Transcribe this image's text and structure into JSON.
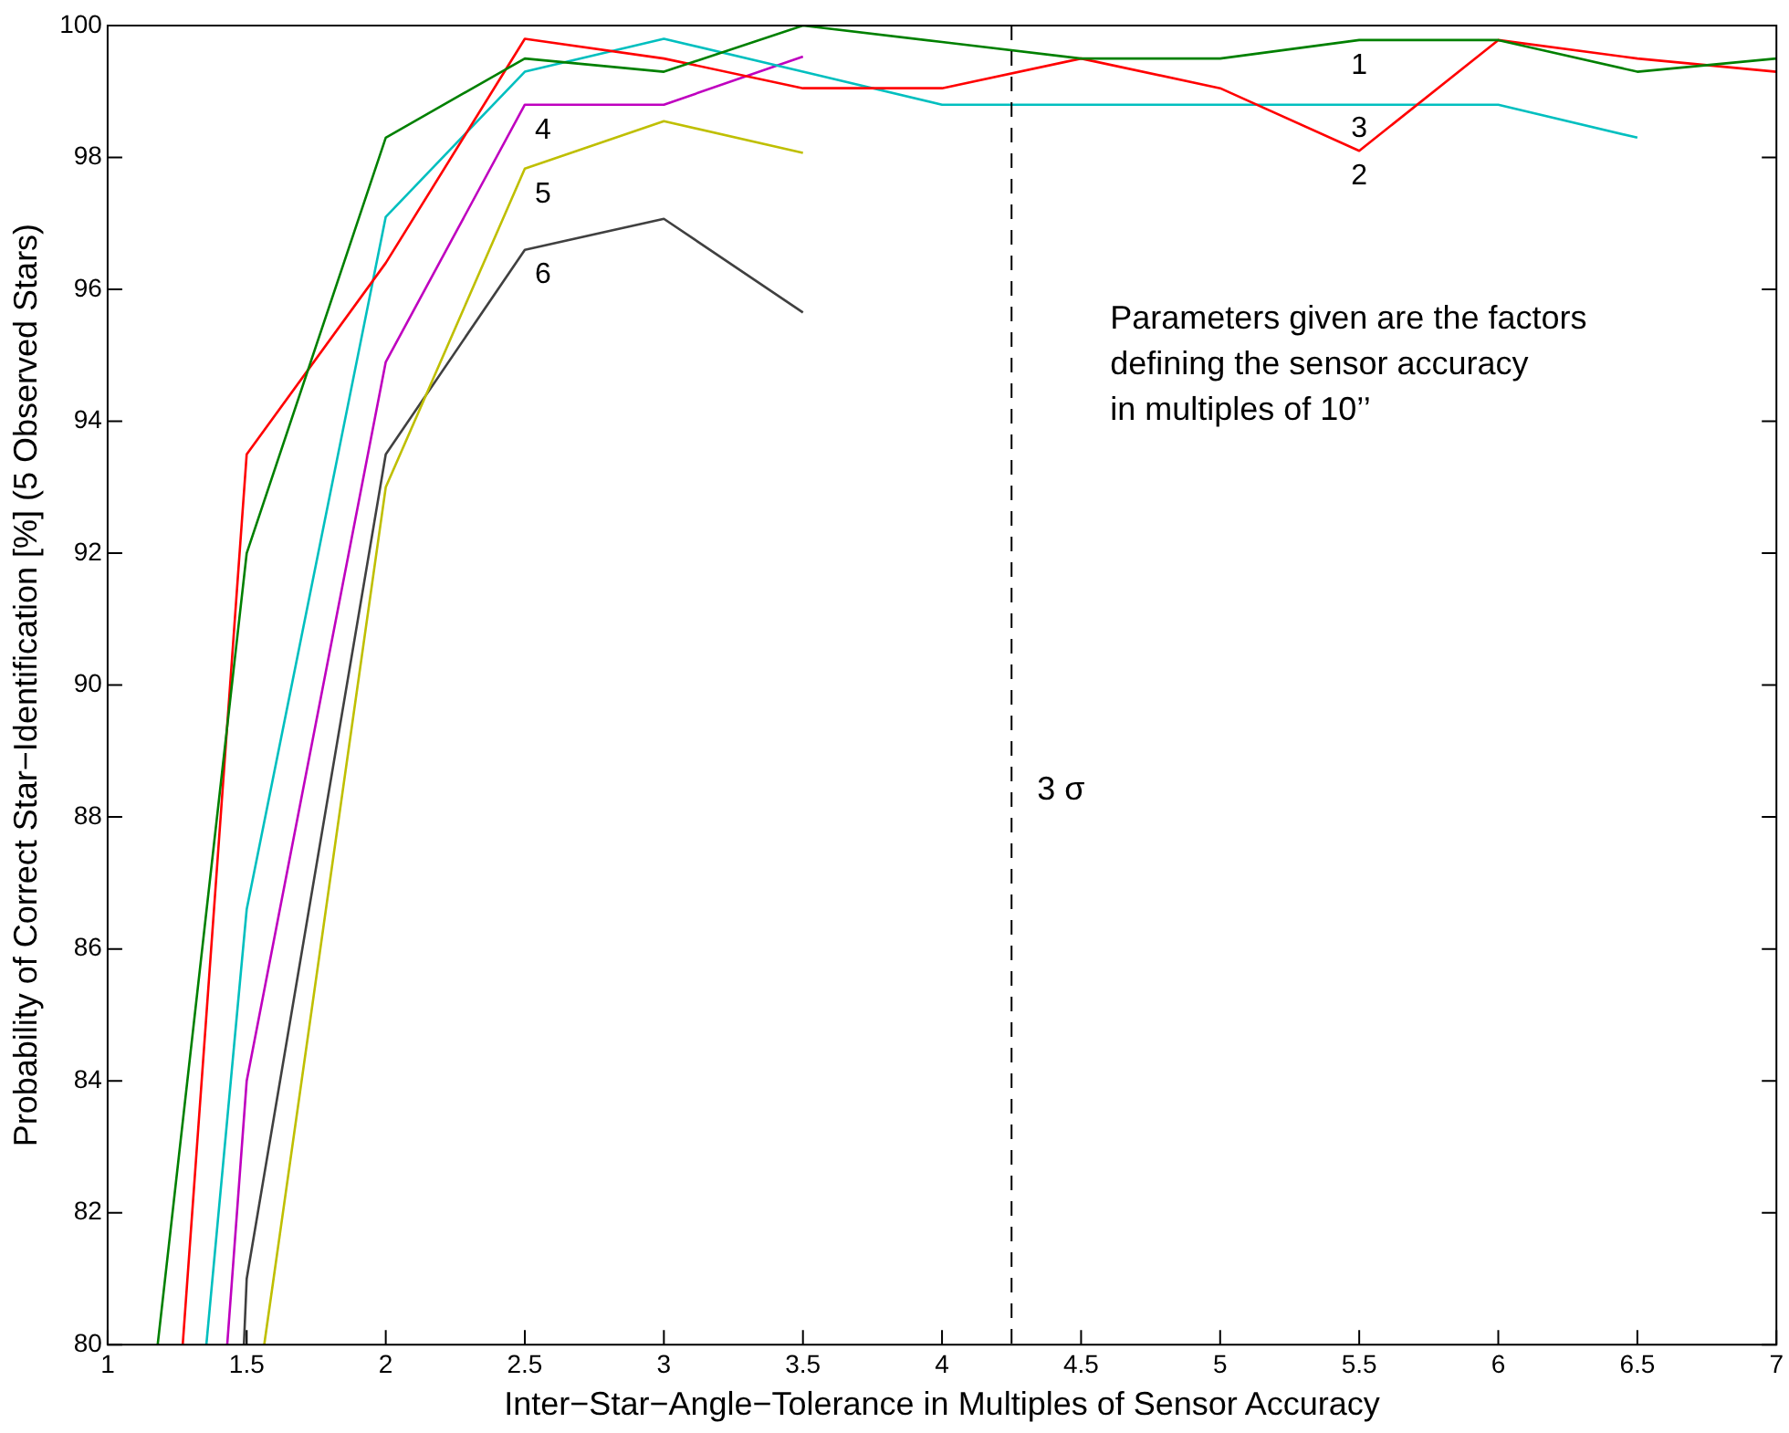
{
  "chart_data": {
    "type": "line",
    "xlabel": "Inter−Star−Angle−Tolerance in Multiples of Sensor Accuracy",
    "ylabel": "Probability of Correct Star−Identification [%] (5 Observed Stars)",
    "xlim": [
      1,
      7
    ],
    "xticks": [
      1,
      1.5,
      2,
      2.5,
      3,
      3.5,
      4,
      4.5,
      5,
      5.5,
      6,
      6.5,
      7
    ],
    "ylim": [
      80,
      100
    ],
    "yticks": [
      80,
      82,
      84,
      86,
      88,
      90,
      92,
      94,
      96,
      98,
      100
    ],
    "legend": false,
    "marker": "none",
    "line_style": "solid",
    "series": [
      {
        "name": "1",
        "color": "#008000",
        "x": [
          1.18,
          1.5,
          2,
          2.5,
          3,
          3.5,
          4,
          4.5,
          5,
          5.5,
          6,
          6.5,
          7
        ],
        "values": [
          80,
          92.0,
          98.3,
          99.5,
          99.3,
          100,
          99.75,
          99.5,
          99.5,
          99.78,
          99.78,
          99.3,
          99.5
        ]
      },
      {
        "name": "2",
        "color": "#ff0000",
        "x": [
          1.27,
          1.5,
          2,
          2.5,
          3,
          3.5,
          4,
          4.5,
          5,
          5.5,
          6,
          6.5,
          7
        ],
        "values": [
          80,
          93.5,
          96.4,
          99.8,
          99.5,
          99.05,
          99.05,
          99.5,
          99.05,
          98.1,
          99.78,
          99.5,
          99.3
        ]
      },
      {
        "name": "3",
        "color": "#00bfbf",
        "x": [
          1.355,
          1.5,
          2,
          2.5,
          3,
          3.5,
          4,
          4.5,
          5,
          5.5,
          6,
          6.5
        ],
        "values": [
          80,
          86.6,
          97.1,
          99.3,
          99.8,
          99.3,
          98.8,
          98.8,
          98.8,
          98.8,
          98.8,
          98.3
        ]
      },
      {
        "name": "4",
        "color": "#bf00bf",
        "x": [
          1.43,
          1.5,
          2,
          2.5,
          3,
          3.5
        ],
        "values": [
          80,
          84.0,
          94.9,
          98.8,
          98.8,
          99.53
        ]
      },
      {
        "name": "5",
        "color": "#bfbf00",
        "x": [
          1.563,
          2,
          2.5,
          3,
          3.5
        ],
        "values": [
          80,
          93.0,
          97.83,
          98.55,
          98.07
        ]
      },
      {
        "name": "6",
        "color": "#404040",
        "x": [
          1.49,
          1.5,
          2,
          2.5,
          3,
          3.5
        ],
        "values": [
          80,
          81.0,
          93.5,
          96.6,
          97.07,
          95.65
        ]
      }
    ],
    "ref_lines": [
      {
        "axis": "x",
        "value": 4.25,
        "label": "3 σ",
        "color": "#000000",
        "line_style": "dashed"
      }
    ],
    "annotations": [
      "Parameters given are the factors\ndefining the sensor accuracy\nin multiples of 10’’"
    ]
  }
}
